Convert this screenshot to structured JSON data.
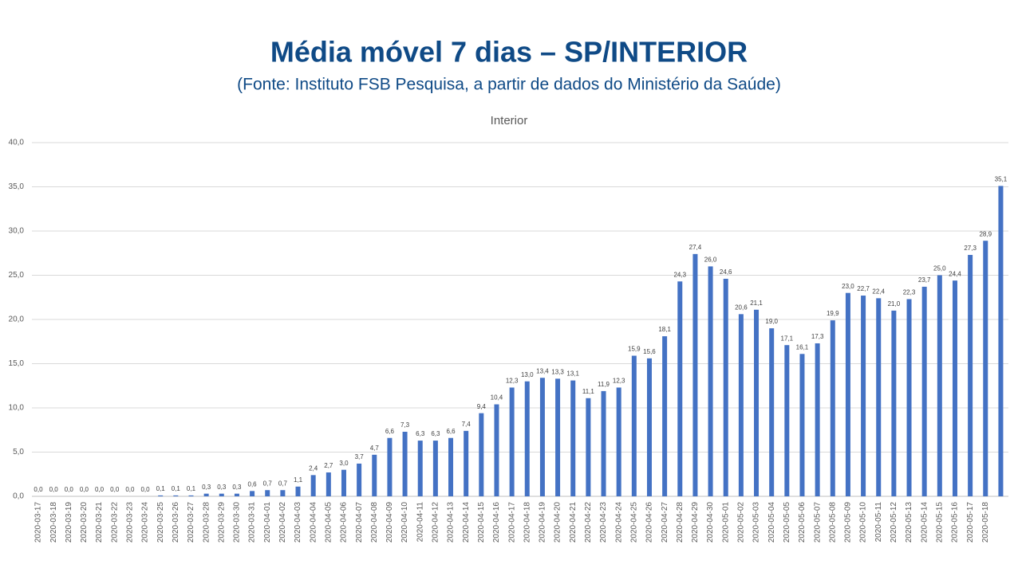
{
  "chart_data": {
    "type": "bar",
    "title": "Média móvel 7 dias – SP/INTERIOR",
    "subtitle": "(Fonte: Instituto FSB Pesquisa, a partir de dados do Ministério da Saúde)",
    "chart_title": "Interior",
    "categories": [
      "2020-03-17",
      "2020-03-18",
      "2020-03-19",
      "2020-03-20",
      "2020-03-21",
      "2020-03-22",
      "2020-03-23",
      "2020-03-24",
      "2020-03-25",
      "2020-03-26",
      "2020-03-27",
      "2020-03-28",
      "2020-03-29",
      "2020-03-30",
      "2020-03-31",
      "2020-04-01",
      "2020-04-02",
      "2020-04-03",
      "2020-04-04",
      "2020-04-05",
      "2020-04-06",
      "2020-04-07",
      "2020-04-08",
      "2020-04-09",
      "2020-04-10",
      "2020-04-11",
      "2020-04-12",
      "2020-04-13",
      "2020-04-14",
      "2020-04-15",
      "2020-04-16",
      "2020-04-17",
      "2020-04-18",
      "2020-04-19",
      "2020-04-20",
      "2020-04-21",
      "2020-04-22",
      "2020-04-23",
      "2020-04-24",
      "2020-04-25",
      "2020-04-26",
      "2020-04-27",
      "2020-04-28",
      "2020-04-29",
      "2020-04-30",
      "2020-05-01",
      "2020-05-02",
      "2020-05-03",
      "2020-05-04",
      "2020-05-05",
      "2020-05-06",
      "2020-05-07",
      "2020-05-08",
      "2020-05-09",
      "2020-05-10",
      "2020-05-11",
      "2020-05-12",
      "2020-05-13",
      "2020-05-14",
      "2020-05-15",
      "2020-05-16",
      "2020-05-17",
      "2020-05-18",
      null
    ],
    "values": [
      0,
      0,
      0,
      0,
      0,
      0,
      0,
      0,
      0.1,
      0.1,
      0.1,
      0.3,
      0.3,
      0.3,
      0.6,
      0.7,
      0.7,
      1.1,
      2.4,
      2.7,
      3.0,
      3.7,
      4.7,
      6.6,
      7.3,
      6.3,
      6.3,
      6.6,
      7.4,
      9.4,
      10.4,
      12.3,
      13.0,
      13.4,
      13.3,
      13.1,
      11.1,
      11.9,
      12.3,
      15.9,
      15.6,
      18.1,
      24.3,
      27.4,
      26.0,
      24.6,
      20.6,
      21.1,
      19.0,
      17.1,
      16.1,
      17.3,
      19.9,
      23.0,
      22.7,
      22.4,
      21.0,
      22.3,
      23.7,
      25.0,
      24.4,
      27.3,
      28.9,
      35.1
    ],
    "value_labels": [
      "0,0",
      "0,0",
      "0,0",
      "0,0",
      "0,0",
      "0,0",
      "0,0",
      "0,0",
      "0,1",
      "0,1",
      "0,1",
      "0,3",
      "0,3",
      "0,3",
      "0,6",
      "0,7",
      "0,7",
      "1,1",
      "2,4",
      "2,7",
      "3,0",
      "3,7",
      "4,7",
      "6,6",
      "7,3",
      "6,3",
      "6,3",
      "6,6",
      "7,4",
      "9,4",
      "10,4",
      "12,3",
      "13,0",
      "13,4",
      "13,3",
      "13,1",
      "11,1",
      "11,9",
      "12,3",
      "15,9",
      "15,6",
      "18,1",
      "24,3",
      "27,4",
      "26,0",
      "24,6",
      "20,6",
      "21,1",
      "19,0",
      "17,1",
      "16,1",
      "17,3",
      "19,9",
      "23,0",
      "22,7",
      "22,4",
      "21,0",
      "22,3",
      "23,7",
      "25,0",
      "24,4",
      "27,3",
      "28,9",
      "35,1"
    ],
    "color": "#4472c4",
    "ylim": [
      0,
      40
    ],
    "yticks": [
      {
        "value": 0,
        "label": "0,0"
      },
      {
        "value": 5,
        "label": "5,0"
      },
      {
        "value": 10,
        "label": "10,0"
      },
      {
        "value": 15,
        "label": "15,0"
      },
      {
        "value": 20,
        "label": "20,0"
      },
      {
        "value": 25,
        "label": "25,0"
      },
      {
        "value": 30,
        "label": "30,0"
      },
      {
        "value": 35,
        "label": "35,0"
      },
      {
        "value": 40,
        "label": "40,0"
      }
    ],
    "grid": true
  }
}
